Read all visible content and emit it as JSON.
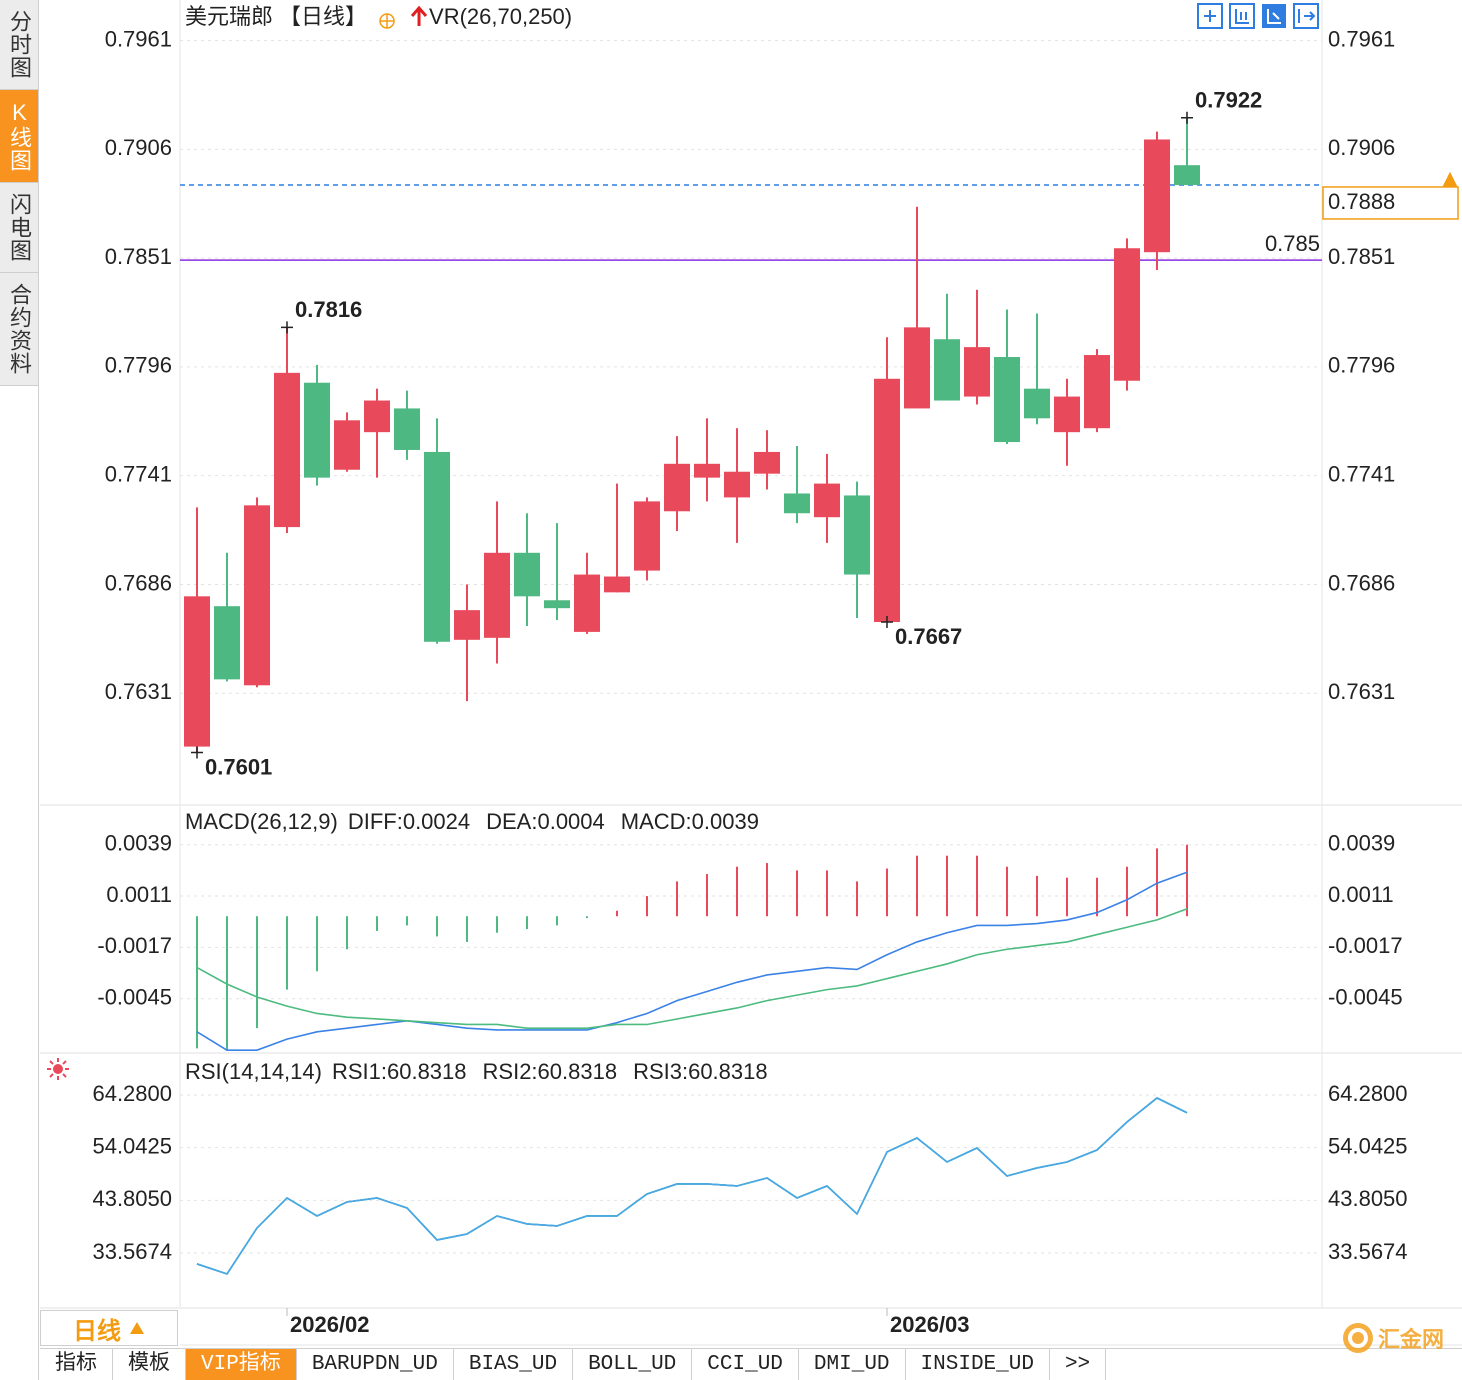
{
  "ui": {
    "sidebar_tabs": [
      "分时图",
      "K线图",
      "闪电图",
      "合约资料"
    ],
    "active_sidebar_tab": 1,
    "period": "日线",
    "bottom_tabs": [
      "指标",
      "模板",
      "VIP指标",
      "BARUPDN_UD",
      "BIAS_UD",
      "BOLL_UD",
      "CCI_UD",
      "DMI_UD",
      "INSIDE_UD",
      ">>"
    ],
    "active_bottom_tab": 2,
    "logo": "汇金网"
  },
  "chart_data": [
    {
      "type": "candlestick",
      "title": "美元瑞郎",
      "period_label": "【日线】",
      "indicator": "VR(26,70,250)",
      "categories": [
        null,
        null,
        null,
        "2026/02",
        null,
        null,
        null,
        null,
        null,
        null,
        null,
        null,
        null,
        null,
        null,
        null,
        null,
        null,
        null,
        null,
        null,
        null,
        null,
        "2026/03",
        null,
        null,
        null,
        null,
        null,
        null,
        null,
        null,
        null,
        null
      ],
      "open": [
        0.7604,
        0.7675,
        0.7635,
        0.7715,
        0.7788,
        0.7744,
        0.7763,
        0.7775,
        0.7753,
        0.7658,
        0.7659,
        0.7702,
        0.7678,
        0.7662,
        0.7682,
        0.7693,
        0.7723,
        0.774,
        0.773,
        0.7742,
        0.7732,
        0.772,
        0.7731,
        0.7667,
        0.7775,
        0.781,
        0.7781,
        0.7801,
        0.7785,
        0.7763,
        0.7765,
        0.7789,
        0.7854,
        0.7898
      ],
      "high": [
        0.7725,
        0.7702,
        0.773,
        0.7816,
        0.7797,
        0.7773,
        0.7785,
        0.7784,
        0.777,
        0.7686,
        0.7728,
        0.7722,
        0.7717,
        0.7702,
        0.7737,
        0.773,
        0.7761,
        0.777,
        0.7765,
        0.7764,
        0.7756,
        0.7752,
        0.7738,
        0.7811,
        0.7877,
        0.7833,
        0.7835,
        0.7825,
        0.7823,
        0.779,
        0.7805,
        0.7861,
        0.7915,
        0.7922
      ],
      "low": [
        0.7601,
        0.7637,
        0.7634,
        0.7712,
        0.7736,
        0.7743,
        0.774,
        0.7749,
        0.7656,
        0.7627,
        0.7646,
        0.7665,
        0.7668,
        0.7661,
        0.7682,
        0.7688,
        0.7713,
        0.7728,
        0.7707,
        0.7734,
        0.7717,
        0.7707,
        0.7669,
        0.7667,
        0.7775,
        0.7779,
        0.7777,
        0.7757,
        0.7767,
        0.7746,
        0.7763,
        0.7784,
        0.7845,
        0.7888
      ],
      "close": [
        0.768,
        0.7638,
        0.7726,
        0.7793,
        0.774,
        0.7769,
        0.7779,
        0.7754,
        0.7657,
        0.7673,
        0.7702,
        0.768,
        0.7674,
        0.7691,
        0.769,
        0.7728,
        0.7747,
        0.7747,
        0.7743,
        0.7753,
        0.7722,
        0.7737,
        0.7691,
        0.779,
        0.7816,
        0.7779,
        0.7806,
        0.7758,
        0.777,
        0.7781,
        0.7802,
        0.7856,
        0.7911,
        0.7888
      ],
      "up_color": "#e94a5b",
      "down_color": "#4db882",
      "ylim": [
        0.7577,
        0.7979
      ],
      "yticks": [
        0.7961,
        0.7906,
        0.7851,
        0.7796,
        0.7741,
        0.7686,
        0.7631
      ],
      "grid": true,
      "price_lines": [
        {
          "value": 0.7888,
          "color": "#2b7fe0",
          "dashed": true,
          "box_color": "#f39c12"
        },
        {
          "value": 0.785,
          "color": "#8a2be2",
          "dashed": false
        }
      ]
    },
    {
      "type": "macd",
      "title": "MACD(26,12,9)",
      "ylim": [
        -0.0074,
        0.0059
      ],
      "yticks": [
        0.0039,
        0.0011,
        -0.0017,
        -0.0045
      ],
      "grid": true,
      "series": [
        {
          "name": "DIFF:0.0024",
          "color": "#3b82e6",
          "kind": "line",
          "values": [
            -0.0063,
            -0.0073,
            -0.0073,
            -0.0067,
            -0.0063,
            -0.0061,
            -0.0059,
            -0.0057,
            -0.0059,
            -0.0061,
            -0.0062,
            -0.0062,
            -0.0062,
            -0.0062,
            -0.0058,
            -0.0053,
            -0.0046,
            -0.0041,
            -0.0036,
            -0.0032,
            -0.003,
            -0.0028,
            -0.0029,
            -0.0021,
            -0.0014,
            -0.0009,
            -0.0005,
            -0.0005,
            -0.0004,
            -0.0002,
            0.0002,
            0.0009,
            0.0018,
            0.0024
          ]
        },
        {
          "name": "DEA:0.0004",
          "color": "#4cbb7f",
          "kind": "line",
          "values": [
            -0.0028,
            -0.0037,
            -0.0044,
            -0.0049,
            -0.0053,
            -0.0055,
            -0.0056,
            -0.0057,
            -0.0058,
            -0.0059,
            -0.0059,
            -0.0061,
            -0.0061,
            -0.0061,
            -0.0059,
            -0.0059,
            -0.0056,
            -0.0053,
            -0.005,
            -0.0046,
            -0.0043,
            -0.004,
            -0.0038,
            -0.0034,
            -0.003,
            -0.0026,
            -0.0021,
            -0.0018,
            -0.0016,
            -0.0014,
            -0.001,
            -0.0006,
            -0.0002,
            0.0004
          ]
        },
        {
          "name": "MACD:0.0039",
          "color": "#5cb8f0",
          "kind": "histogram",
          "up_color": "#e94a5b",
          "down_color": "#4db882",
          "values": [
            -0.0072,
            -0.0073,
            -0.0061,
            -0.004,
            -0.003,
            -0.0018,
            -0.0008,
            -0.0005,
            -0.0011,
            -0.0014,
            -0.0009,
            -0.0007,
            -0.0005,
            -0.0001,
            0.0003,
            0.0011,
            0.0019,
            0.0023,
            0.0027,
            0.0029,
            0.0025,
            0.0025,
            0.0019,
            0.0026,
            0.0033,
            0.0033,
            0.0033,
            0.0027,
            0.0022,
            0.0021,
            0.0021,
            0.0027,
            0.0037,
            0.0039
          ]
        }
      ]
    },
    {
      "type": "rsi",
      "title": "RSI(14,14,14)",
      "ylim": [
        23.47,
        71.47
      ],
      "yticks": [
        {
          "value": 64.28,
          "label": "64.2800"
        },
        54.0425,
        {
          "value": 43.805,
          "label": "43.8050"
        },
        33.5674
      ],
      "grid": true,
      "series": [
        {
          "name": "RSI1:60.8318",
          "color": "#3b82e6",
          "kind": "line",
          "values": [
            31.45,
            29.5,
            38.44,
            44.27,
            40.77,
            43.49,
            44.27,
            42.33,
            36.11,
            37.27,
            40.77,
            39.22,
            38.83,
            40.77,
            40.77,
            45.05,
            46.99,
            46.99,
            46.6,
            48.15,
            44.27,
            46.6,
            41.16,
            53.21,
            55.93,
            51.26,
            53.98,
            48.54,
            50.1,
            51.26,
            53.59,
            59.03,
            63.7,
            60.8318
          ]
        },
        {
          "name": "RSI2:60.8318",
          "color": "#4cbb7f",
          "kind": "line",
          "values": [
            31.45,
            29.5,
            38.44,
            44.27,
            40.77,
            43.49,
            44.27,
            42.33,
            36.11,
            37.27,
            40.77,
            39.22,
            38.83,
            40.77,
            40.77,
            45.05,
            46.99,
            46.99,
            46.6,
            48.15,
            44.27,
            46.6,
            41.16,
            53.21,
            55.93,
            51.26,
            53.98,
            48.54,
            50.1,
            51.26,
            53.59,
            59.03,
            63.7,
            60.8318
          ]
        },
        {
          "name": "RSI3:60.8318",
          "color": "#4aa8e8",
          "kind": "line",
          "values": [
            31.45,
            29.5,
            38.44,
            44.27,
            40.77,
            43.49,
            44.27,
            42.33,
            36.11,
            37.27,
            40.77,
            39.22,
            38.83,
            40.77,
            40.77,
            45.05,
            46.99,
            46.99,
            46.6,
            48.15,
            44.27,
            46.6,
            41.16,
            53.21,
            55.93,
            51.26,
            53.98,
            48.54,
            50.1,
            51.26,
            53.59,
            59.03,
            63.7,
            60.8318
          ]
        }
      ]
    }
  ]
}
